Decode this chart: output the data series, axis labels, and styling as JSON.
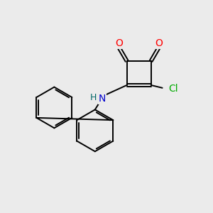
{
  "bg_color": "#ebebeb",
  "bond_color": "#000000",
  "bond_lw": 1.4,
  "atom_colors": {
    "O": "#ff0000",
    "N": "#0000cc",
    "Cl": "#00aa00",
    "H": "#006666"
  },
  "figsize": [
    3.0,
    3.0
  ],
  "dpi": 100
}
